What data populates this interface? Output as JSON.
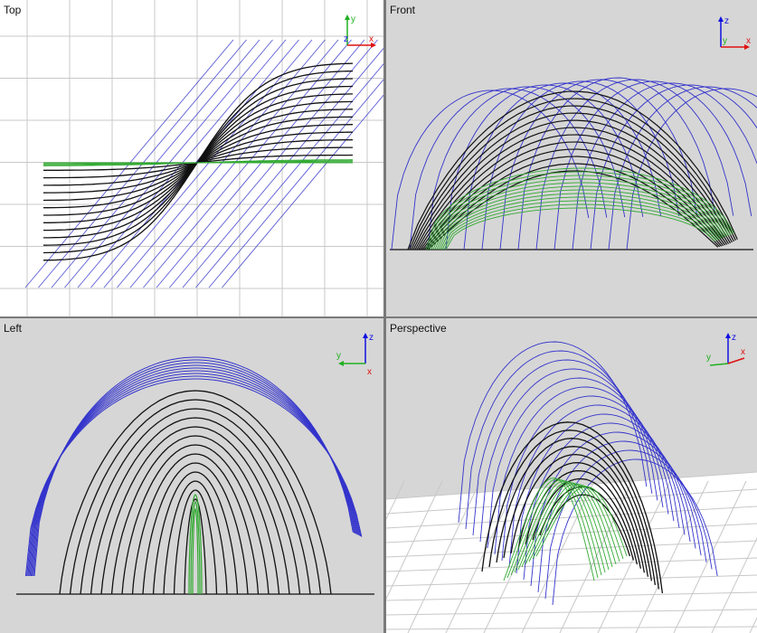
{
  "viewports": {
    "top": {
      "title": "Top",
      "axes": {
        "up": "y",
        "right": "x",
        "center": "z"
      }
    },
    "front": {
      "title": "Front",
      "axes": {
        "up": "z",
        "right": "x",
        "center": "y"
      }
    },
    "left": {
      "title": "Left",
      "axes": {
        "up": "z",
        "left": "y",
        "right": "x"
      }
    },
    "perspective": {
      "title": "Perspective",
      "axes": {
        "up": "z",
        "left": "y",
        "right": "x"
      }
    }
  },
  "colors": {
    "viewport_bg_top": "#ffffff",
    "viewport_bg_other": "#d6d6d6",
    "blue_curves": "#3333cc",
    "black_curves": "#111111",
    "green_curves": "#33aa33",
    "grid": "#c8c8c8",
    "axis_x": "#e01010",
    "axis_y": "#20b020",
    "axis_z": "#1010e0"
  }
}
